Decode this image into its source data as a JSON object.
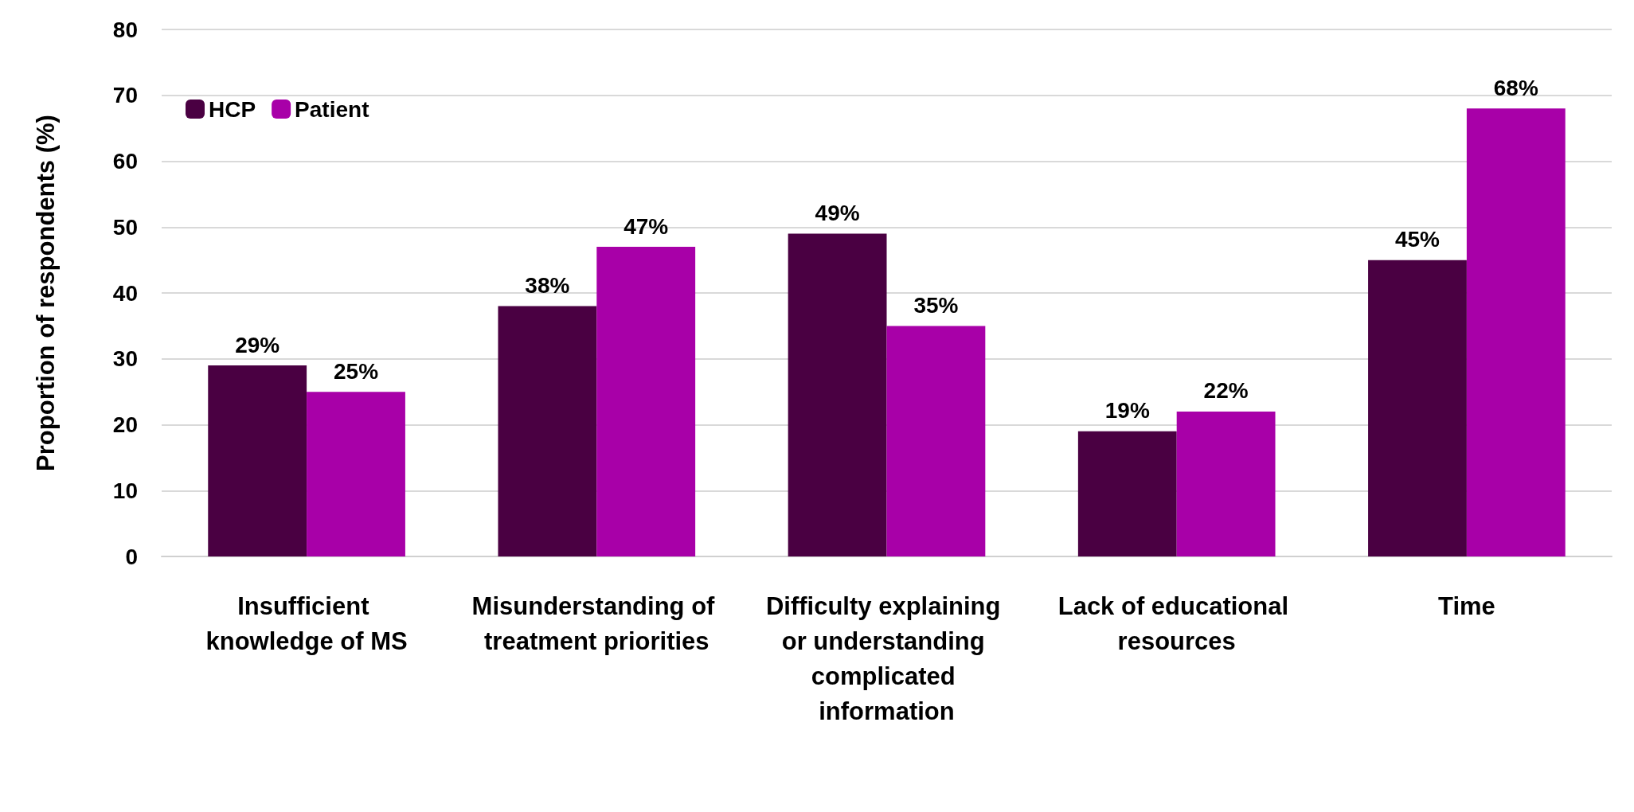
{
  "chart_data": {
    "type": "bar",
    "ylabel": "Proportion of respondents (%)",
    "categories": [
      "Insufficient knowledge of MS",
      "Misunderstanding of treatment priorities",
      "Difficulty explaining or understanding complicated information",
      "Lack of educational resources",
      "Time"
    ],
    "series": [
      {
        "name": "HCP",
        "color": "#4a0042",
        "values": [
          29,
          38,
          49,
          19,
          45
        ],
        "value_labels": [
          "29%",
          "38%",
          "49%",
          "19%",
          "45%"
        ]
      },
      {
        "name": "Patient",
        "color": "#a800a8",
        "values": [
          25,
          47,
          35,
          22,
          68
        ],
        "value_labels": [
          "25%",
          "47%",
          "35%",
          "22%",
          "68%"
        ]
      }
    ],
    "ylim": [
      0,
      80
    ],
    "yticks": [
      0,
      10,
      20,
      30,
      40,
      50,
      60,
      70,
      80
    ],
    "grid": "y",
    "legend": "top left"
  }
}
